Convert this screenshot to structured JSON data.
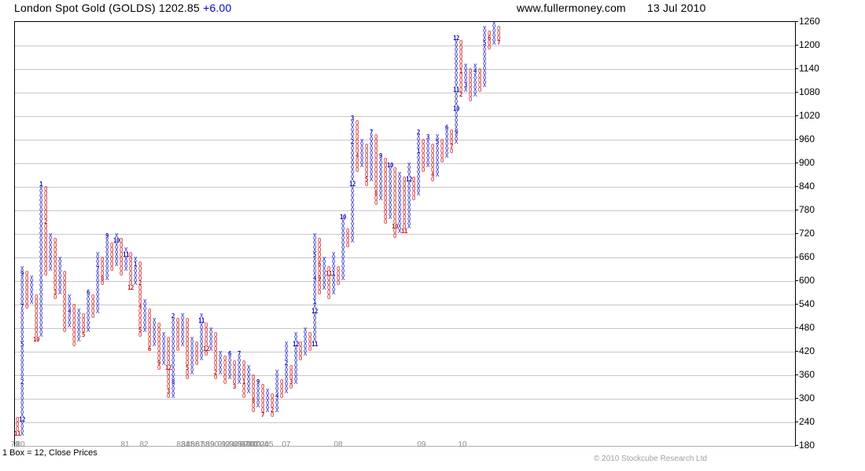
{
  "header": {
    "title": "London Spot Gold (GOLDS) 1202.85",
    "change": "+6.00",
    "site": "www.fullermoney.com",
    "date": "13 Jul 2010"
  },
  "footer": {
    "box_note": "1 Box = 12, Close Prices",
    "copyright": "© 2010 Stockcube Research Ltd"
  },
  "chart_data": {
    "type": "point-and-figure",
    "title": "London Spot Gold (GOLDS)",
    "last_price": 1202.85,
    "change": 6.0,
    "box_size": 12,
    "price_basis": "Close Prices",
    "ylim": [
      180,
      1260
    ],
    "ytick_step": 60,
    "yticks": [
      1260,
      1200,
      1140,
      1080,
      1020,
      960,
      900,
      840,
      780,
      720,
      660,
      600,
      540,
      480,
      420,
      360,
      300,
      240,
      180
    ],
    "grid": true,
    "colors": {
      "x": "#1414c0",
      "o": "#cc1414",
      "grid": "#c8c8c8",
      "year": "#8c8c8c",
      "copyright": "#a0a0a0",
      "change": "#0000cc"
    },
    "year_ticks": [
      [
        "79",
        19
      ],
      [
        "80",
        26
      ],
      [
        "81",
        159
      ],
      [
        "82",
        183
      ],
      [
        "83",
        230
      ],
      [
        "84",
        236
      ],
      [
        "85",
        242
      ],
      [
        "86",
        248
      ],
      [
        "87",
        254
      ],
      [
        "88",
        261
      ],
      [
        "89",
        267
      ],
      [
        "90",
        273
      ],
      [
        "91",
        282
      ],
      [
        "92",
        287
      ],
      [
        "93",
        292
      ],
      [
        "94",
        297
      ],
      [
        "95",
        302
      ],
      [
        "96",
        307
      ],
      [
        "97",
        311
      ],
      [
        "98",
        315
      ],
      [
        "99",
        319
      ],
      [
        "00",
        323
      ],
      [
        "01",
        327
      ],
      [
        "02",
        331
      ],
      [
        "04",
        336
      ],
      [
        "05",
        342
      ],
      [
        "07",
        364
      ],
      [
        "08",
        430
      ],
      [
        "09",
        536
      ],
      [
        "10",
        588
      ]
    ],
    "columns": [
      {
        "t": "O",
        "lo": 204,
        "hi": 240,
        "m": {
          "204": "11"
        }
      },
      {
        "t": "X",
        "lo": 204,
        "hi": 624,
        "m": {
          "240": "12",
          "336": "2",
          "432": "5",
          "528": "7",
          "612": "9"
        }
      },
      {
        "t": "O",
        "lo": 528,
        "hi": 612
      },
      {
        "t": "X",
        "lo": 540,
        "hi": 600
      },
      {
        "t": "O",
        "lo": 444,
        "hi": 552,
        "m": {
          "444": "10"
        }
      },
      {
        "t": "X",
        "lo": 456,
        "hi": 840,
        "m": {
          "840": "1"
        }
      },
      {
        "t": "O",
        "lo": 612,
        "hi": 828,
        "m": {
          "744": "2"
        }
      },
      {
        "t": "X",
        "lo": 624,
        "hi": 708
      },
      {
        "t": "O",
        "lo": 552,
        "hi": 696,
        "m": {
          "564": "3"
        }
      },
      {
        "t": "X",
        "lo": 564,
        "hi": 648
      },
      {
        "t": "O",
        "lo": 468,
        "hi": 612
      },
      {
        "t": "X",
        "lo": 480,
        "hi": 552,
        "m": {
          "516": "4"
        }
      },
      {
        "t": "O",
        "lo": 432,
        "hi": 528
      },
      {
        "t": "X",
        "lo": 444,
        "hi": 516
      },
      {
        "t": "O",
        "lo": 456,
        "hi": 504,
        "m": {
          "456": "5"
        }
      },
      {
        "t": "X",
        "lo": 468,
        "hi": 564,
        "m": {
          "564": "6"
        }
      },
      {
        "t": "O",
        "lo": 504,
        "hi": 552
      },
      {
        "t": "X",
        "lo": 516,
        "hi": 660,
        "m": {
          "624": "7"
        }
      },
      {
        "t": "O",
        "lo": 588,
        "hi": 648,
        "m": {
          "600": "8"
        }
      },
      {
        "t": "X",
        "lo": 600,
        "hi": 708,
        "m": {
          "708": "9"
        }
      },
      {
        "t": "O",
        "lo": 624,
        "hi": 684
      },
      {
        "t": "X",
        "lo": 636,
        "hi": 708,
        "m": {
          "696": "10"
        }
      },
      {
        "t": "O",
        "lo": 612,
        "hi": 696
      },
      {
        "t": "X",
        "lo": 624,
        "hi": 672,
        "m": {
          "660": "11"
        }
      },
      {
        "t": "O",
        "lo": 576,
        "hi": 660,
        "m": {
          "576": "12"
        }
      },
      {
        "t": "X",
        "lo": 588,
        "hi": 648,
        "m": {
          "636": "1"
        }
      },
      {
        "t": "O",
        "lo": 456,
        "hi": 636,
        "m": {
          "588": "2",
          "528": "4",
          "468": "5"
        }
      },
      {
        "t": "X",
        "lo": 468,
        "hi": 540
      },
      {
        "t": "O",
        "lo": 420,
        "hi": 516,
        "m": {
          "420": "6"
        }
      },
      {
        "t": "X",
        "lo": 432,
        "hi": 492
      },
      {
        "t": "O",
        "lo": 372,
        "hi": 480,
        "m": {
          "384": "9"
        }
      },
      {
        "t": "X",
        "lo": 384,
        "hi": 456
      },
      {
        "t": "O",
        "lo": 300,
        "hi": 444,
        "m": {
          "372": "12",
          "312": "3"
        }
      },
      {
        "t": "X",
        "lo": 300,
        "hi": 504,
        "m": {
          "336": "8",
          "504": "2"
        }
      },
      {
        "t": "O",
        "lo": 420,
        "hi": 492
      },
      {
        "t": "X",
        "lo": 432,
        "hi": 504
      },
      {
        "t": "O",
        "lo": 348,
        "hi": 492,
        "m": {
          "372": "5"
        }
      },
      {
        "t": "X",
        "lo": 360,
        "hi": 444
      },
      {
        "t": "O",
        "lo": 384,
        "hi": 432
      },
      {
        "t": "X",
        "lo": 396,
        "hi": 504,
        "m": {
          "492": "11"
        }
      },
      {
        "t": "O",
        "lo": 408,
        "hi": 480,
        "m": {
          "420": "12"
        }
      },
      {
        "t": "X",
        "lo": 420,
        "hi": 468
      },
      {
        "t": "O",
        "lo": 348,
        "hi": 456,
        "m": {
          "360": "2"
        }
      },
      {
        "t": "X",
        "lo": 360,
        "hi": 408
      },
      {
        "t": "O",
        "lo": 336,
        "hi": 396
      },
      {
        "t": "X",
        "lo": 348,
        "hi": 408,
        "m": {
          "408": "6"
        }
      },
      {
        "t": "O",
        "lo": 324,
        "hi": 384,
        "m": {
          "324": "3"
        }
      },
      {
        "t": "X",
        "lo": 336,
        "hi": 408,
        "m": {
          "408": "7"
        }
      },
      {
        "t": "O",
        "lo": 300,
        "hi": 384,
        "m": {
          "336": "1"
        }
      },
      {
        "t": "X",
        "lo": 312,
        "hi": 372
      },
      {
        "t": "O",
        "lo": 264,
        "hi": 348,
        "m": {
          "288": "8"
        }
      },
      {
        "t": "X",
        "lo": 276,
        "hi": 336,
        "m": {
          "336": "9"
        }
      },
      {
        "t": "O",
        "lo": 252,
        "hi": 324,
        "m": {
          "252": "7"
        }
      },
      {
        "t": "X",
        "lo": 264,
        "hi": 312
      },
      {
        "t": "O",
        "lo": 252,
        "hi": 300,
        "m": {
          "264": "2"
        }
      },
      {
        "t": "X",
        "lo": 264,
        "hi": 360,
        "m": {
          "300": "4"
        }
      },
      {
        "t": "O",
        "lo": 300,
        "hi": 336
      },
      {
        "t": "X",
        "lo": 312,
        "hi": 432,
        "m": {
          "384": "2"
        }
      },
      {
        "t": "O",
        "lo": 324,
        "hi": 372,
        "m": {
          "336": "3"
        }
      },
      {
        "t": "X",
        "lo": 336,
        "hi": 456,
        "m": {
          "432": "12"
        }
      },
      {
        "t": "O",
        "lo": 396,
        "hi": 432
      },
      {
        "t": "X",
        "lo": 408,
        "hi": 468
      },
      {
        "t": "O",
        "lo": 420,
        "hi": 456
      },
      {
        "t": "X",
        "lo": 432,
        "hi": 708,
        "m": {
          "432": "11",
          "516": "12",
          "540": "1",
          "600": "4",
          "660": "5"
        }
      },
      {
        "t": "O",
        "lo": 564,
        "hi": 696,
        "m": {
          "636": "6",
          "600": "9"
        }
      },
      {
        "t": "X",
        "lo": 576,
        "hi": 648
      },
      {
        "t": "O",
        "lo": 552,
        "hi": 624,
        "m": {
          "612": "11"
        }
      },
      {
        "t": "X",
        "lo": 564,
        "hi": 660,
        "m": {
          "612": "1"
        }
      },
      {
        "t": "O",
        "lo": 588,
        "hi": 624
      },
      {
        "t": "X",
        "lo": 600,
        "hi": 756,
        "m": {
          "756": "10"
        }
      },
      {
        "t": "O",
        "lo": 684,
        "hi": 720
      },
      {
        "t": "X",
        "lo": 696,
        "hi": 1008,
        "m": {
          "840": "12",
          "948": "2",
          "1008": "3"
        }
      },
      {
        "t": "O",
        "lo": 876,
        "hi": 996,
        "m": {
          "912": "4"
        }
      },
      {
        "t": "X",
        "lo": 888,
        "hi": 948
      },
      {
        "t": "O",
        "lo": 840,
        "hi": 936,
        "m": {
          "852": "5"
        }
      },
      {
        "t": "X",
        "lo": 852,
        "hi": 972,
        "m": {
          "972": "7"
        }
      },
      {
        "t": "O",
        "lo": 792,
        "hi": 960,
        "m": {
          "816": "8"
        }
      },
      {
        "t": "X",
        "lo": 804,
        "hi": 912,
        "m": {
          "912": "9"
        }
      },
      {
        "t": "O",
        "lo": 744,
        "hi": 900
      },
      {
        "t": "X",
        "lo": 756,
        "hi": 888,
        "m": {
          "888": "10"
        }
      },
      {
        "t": "O",
        "lo": 708,
        "hi": 876,
        "m": {
          "732": "10"
        }
      },
      {
        "t": "X",
        "lo": 720,
        "hi": 864
      },
      {
        "t": "O",
        "lo": 720,
        "hi": 852,
        "m": {
          "720": "11"
        }
      },
      {
        "t": "X",
        "lo": 732,
        "hi": 888,
        "m": {
          "852": "12"
        }
      },
      {
        "t": "O",
        "lo": 804,
        "hi": 852
      },
      {
        "t": "X",
        "lo": 816,
        "hi": 972,
        "m": {
          "924": "1",
          "972": "2"
        }
      },
      {
        "t": "O",
        "lo": 876,
        "hi": 948
      },
      {
        "t": "X",
        "lo": 888,
        "hi": 960,
        "m": {
          "960": "3"
        }
      },
      {
        "t": "O",
        "lo": 852,
        "hi": 936,
        "m": {
          "864": "4"
        }
      },
      {
        "t": "X",
        "lo": 864,
        "hi": 960,
        "m": {
          "948": "5"
        }
      },
      {
        "t": "O",
        "lo": 900,
        "hi": 948
      },
      {
        "t": "X",
        "lo": 912,
        "hi": 984,
        "m": {
          "984": "6"
        }
      },
      {
        "t": "O",
        "lo": 924,
        "hi": 972,
        "m": {
          "936": "7"
        }
      },
      {
        "t": "X",
        "lo": 948,
        "hi": 1212,
        "m": {
          "972": "9",
          "1032": "10",
          "1080": "11",
          "1212": "12"
        }
      },
      {
        "t": "O",
        "lo": 1068,
        "hi": 1200,
        "m": {
          "1128": "1",
          "1068": "2"
        }
      },
      {
        "t": "X",
        "lo": 1080,
        "hi": 1140,
        "m": {
          "1092": "3"
        }
      },
      {
        "t": "O",
        "lo": 1056,
        "hi": 1128
      },
      {
        "t": "X",
        "lo": 1068,
        "hi": 1140,
        "m": {
          "1128": "4"
        }
      },
      {
        "t": "O",
        "lo": 1080,
        "hi": 1128
      },
      {
        "t": "X",
        "lo": 1092,
        "hi": 1236,
        "m": {
          "1200": "5"
        }
      },
      {
        "t": "O",
        "lo": 1188,
        "hi": 1224,
        "m": {
          "1212": "6"
        }
      },
      {
        "t": "X",
        "lo": 1200,
        "hi": 1248
      },
      {
        "t": "O",
        "lo": 1200,
        "hi": 1236,
        "m": {
          "1200": "7"
        }
      }
    ]
  }
}
